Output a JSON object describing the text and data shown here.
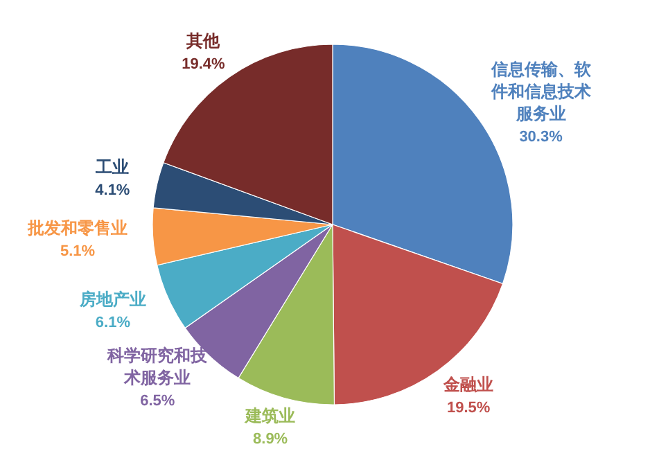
{
  "chart_data": {
    "type": "pie",
    "categories": [
      "信息传输、软件和信息技术服务业",
      "金融业",
      "建筑业",
      "科学研究和技术服务业",
      "房地产业",
      "批发和零售业",
      "工业",
      "其他"
    ],
    "values": [
      30.3,
      19.5,
      8.9,
      6.5,
      6.1,
      5.1,
      4.1,
      19.4
    ],
    "colors": [
      "#4f81bd",
      "#c0504d",
      "#9bbb59",
      "#8064a2",
      "#4bacc6",
      "#f79646",
      "#2c4d75",
      "#772c2a"
    ],
    "value_labels": [
      "30.3%",
      "19.5%",
      "8.9%",
      "6.5%",
      "6.1%",
      "5.1%",
      "4.1%",
      "19.4%"
    ]
  }
}
